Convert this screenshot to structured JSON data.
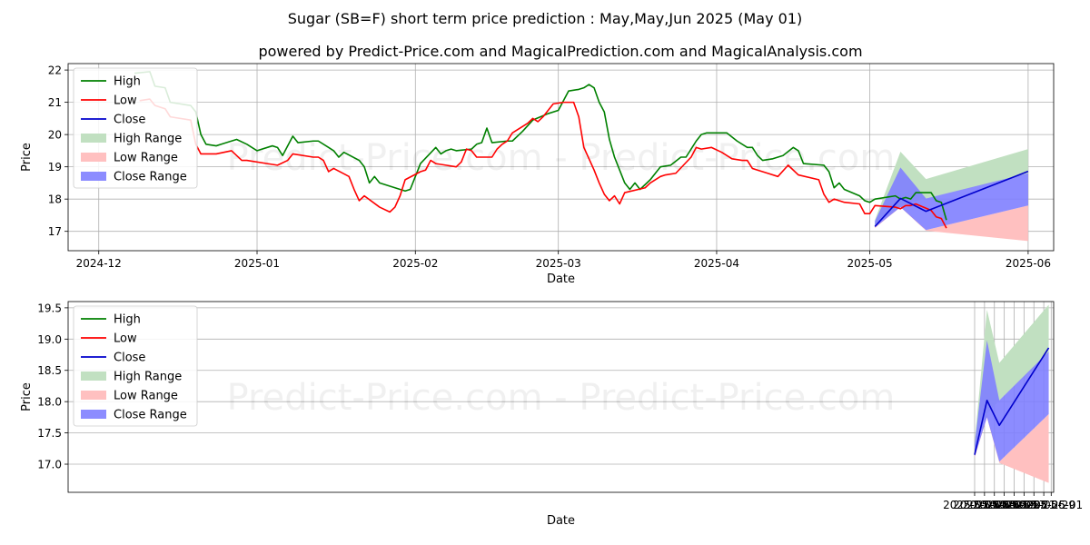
{
  "title": "Sugar (SB=F) short term price prediction : May,May,Jun 2025 (May 01)",
  "subtitle": "powered by Predict-Price.com and MagicalPrediction.com and MagicalAnalysis.com",
  "watermark": "Predict-Price.com - Predict-Price.com",
  "colors": {
    "high": "#008000",
    "low": "#ff0000",
    "close": "#0000cc",
    "high_range": "#c1e0c1",
    "low_range": "#ffc0c0",
    "close_range": "#7f7fff"
  },
  "chart_data": [
    {
      "type": "line",
      "xlabel": "Date",
      "ylabel": "Price",
      "x_type": "date",
      "xlim": [
        "2024-11-24",
        "2025-06-05"
      ],
      "ylim": [
        16.4,
        22.2
      ],
      "x_ticks": [
        "2024-12",
        "2025-01",
        "2025-02",
        "2025-03",
        "2025-04",
        "2025-05",
        "2025-06"
      ],
      "y_ticks": [
        17,
        18,
        19,
        20,
        21,
        22
      ],
      "grid": true,
      "legend_position": "top-left",
      "legend": [
        "High",
        "Low",
        "Close",
        "High Range",
        "Low Range",
        "Close Range"
      ],
      "high_series": [
        [
          "2024-12-07",
          21.9
        ],
        [
          "2024-12-10",
          21.95
        ],
        [
          "2024-12-11",
          21.5
        ],
        [
          "2024-12-13",
          21.45
        ],
        [
          "2024-12-14",
          21.0
        ],
        [
          "2024-12-18",
          20.9
        ],
        [
          "2024-12-19",
          20.7
        ],
        [
          "2024-12-20",
          20.0
        ],
        [
          "2024-12-21",
          19.7
        ],
        [
          "2024-12-23",
          19.65
        ],
        [
          "2024-12-24",
          19.7
        ],
        [
          "2024-12-26",
          19.8
        ],
        [
          "2024-12-27",
          19.85
        ],
        [
          "2024-12-29",
          19.7
        ],
        [
          "2024-12-31",
          19.5
        ],
        [
          "2025-01-03",
          19.65
        ],
        [
          "2025-01-04",
          19.6
        ],
        [
          "2025-01-05",
          19.35
        ],
        [
          "2025-01-07",
          19.95
        ],
        [
          "2025-01-08",
          19.75
        ],
        [
          "2025-01-11",
          19.8
        ],
        [
          "2025-01-12",
          19.8
        ],
        [
          "2025-01-14",
          19.6
        ],
        [
          "2025-01-15",
          19.5
        ],
        [
          "2025-01-16",
          19.3
        ],
        [
          "2025-01-17",
          19.45
        ],
        [
          "2025-01-20",
          19.2
        ],
        [
          "2025-01-21",
          19.0
        ],
        [
          "2025-01-22",
          18.5
        ],
        [
          "2025-01-23",
          18.7
        ],
        [
          "2025-01-24",
          18.5
        ],
        [
          "2025-01-28",
          18.3
        ],
        [
          "2025-01-29",
          18.25
        ],
        [
          "2025-01-30",
          18.3
        ],
        [
          "2025-01-31",
          18.7
        ],
        [
          "2025-02-01",
          19.1
        ],
        [
          "2025-02-04",
          19.6
        ],
        [
          "2025-02-05",
          19.4
        ],
        [
          "2025-02-06",
          19.5
        ],
        [
          "2025-02-07",
          19.55
        ],
        [
          "2025-02-08",
          19.5
        ],
        [
          "2025-02-11",
          19.55
        ],
        [
          "2025-02-12",
          19.7
        ],
        [
          "2025-02-13",
          19.75
        ],
        [
          "2025-02-14",
          20.2
        ],
        [
          "2025-02-15",
          19.75
        ],
        [
          "2025-02-18",
          19.8
        ],
        [
          "2025-02-19",
          19.8
        ],
        [
          "2025-02-21",
          20.1
        ],
        [
          "2025-02-23",
          20.45
        ],
        [
          "2025-02-26",
          20.65
        ],
        [
          "2025-02-28",
          20.75
        ],
        [
          "2025-03-02",
          21.35
        ],
        [
          "2025-03-04",
          21.4
        ],
        [
          "2025-03-05",
          21.45
        ],
        [
          "2025-03-06",
          21.55
        ],
        [
          "2025-03-07",
          21.45
        ],
        [
          "2025-03-08",
          21.0
        ],
        [
          "2025-03-09",
          20.7
        ],
        [
          "2025-03-10",
          19.85
        ],
        [
          "2025-03-11",
          19.3
        ],
        [
          "2025-03-12",
          18.9
        ],
        [
          "2025-03-13",
          18.5
        ],
        [
          "2025-03-14",
          18.3
        ],
        [
          "2025-03-15",
          18.5
        ],
        [
          "2025-03-16",
          18.3
        ],
        [
          "2025-03-18",
          18.6
        ],
        [
          "2025-03-20",
          19.0
        ],
        [
          "2025-03-22",
          19.05
        ],
        [
          "2025-03-24",
          19.3
        ],
        [
          "2025-03-25",
          19.3
        ],
        [
          "2025-03-27",
          19.8
        ],
        [
          "2025-03-28",
          20.0
        ],
        [
          "2025-03-29",
          20.05
        ],
        [
          "2025-04-01",
          20.05
        ],
        [
          "2025-04-02",
          20.05
        ],
        [
          "2025-04-04",
          19.8
        ],
        [
          "2025-04-06",
          19.6
        ],
        [
          "2025-04-07",
          19.6
        ],
        [
          "2025-04-08",
          19.35
        ],
        [
          "2025-04-09",
          19.2
        ],
        [
          "2025-04-11",
          19.25
        ],
        [
          "2025-04-13",
          19.35
        ],
        [
          "2025-04-15",
          19.6
        ],
        [
          "2025-04-16",
          19.5
        ],
        [
          "2025-04-17",
          19.1
        ],
        [
          "2025-04-21",
          19.05
        ],
        [
          "2025-04-22",
          18.85
        ],
        [
          "2025-04-23",
          18.35
        ],
        [
          "2025-04-24",
          18.5
        ],
        [
          "2025-04-25",
          18.3
        ],
        [
          "2025-04-28",
          18.1
        ],
        [
          "2025-04-29",
          17.95
        ],
        [
          "2025-04-30",
          17.9
        ],
        [
          "2025-05-01",
          18.0
        ],
        [
          "2025-05-05",
          18.1
        ],
        [
          "2025-05-06",
          18.0
        ],
        [
          "2025-05-07",
          18.05
        ],
        [
          "2025-05-08",
          18.0
        ],
        [
          "2025-05-09",
          18.2
        ],
        [
          "2025-05-12",
          18.2
        ],
        [
          "2025-05-13",
          17.95
        ],
        [
          "2025-05-14",
          17.9
        ],
        [
          "2025-05-15",
          17.35
        ]
      ],
      "low_series": [
        [
          "2024-12-08",
          21.05
        ],
        [
          "2024-12-10",
          21.1
        ],
        [
          "2024-12-11",
          20.9
        ],
        [
          "2024-12-13",
          20.8
        ],
        [
          "2024-12-14",
          20.55
        ],
        [
          "2024-12-18",
          20.45
        ],
        [
          "2024-12-19",
          19.7
        ],
        [
          "2024-12-20",
          19.4
        ],
        [
          "2024-12-23",
          19.4
        ],
        [
          "2024-12-26",
          19.5
        ],
        [
          "2024-12-28",
          19.2
        ],
        [
          "2024-12-29",
          19.2
        ],
        [
          "2025-01-02",
          19.1
        ],
        [
          "2025-01-04",
          19.05
        ],
        [
          "2025-01-06",
          19.2
        ],
        [
          "2025-01-07",
          19.4
        ],
        [
          "2025-01-11",
          19.3
        ],
        [
          "2025-01-12",
          19.3
        ],
        [
          "2025-01-13",
          19.2
        ],
        [
          "2025-01-14",
          18.85
        ],
        [
          "2025-01-15",
          18.95
        ],
        [
          "2025-01-18",
          18.7
        ],
        [
          "2025-01-19",
          18.3
        ],
        [
          "2025-01-20",
          17.95
        ],
        [
          "2025-01-21",
          18.1
        ],
        [
          "2025-01-24",
          17.75
        ],
        [
          "2025-01-26",
          17.6
        ],
        [
          "2025-01-27",
          17.75
        ],
        [
          "2025-01-28",
          18.1
        ],
        [
          "2025-01-29",
          18.6
        ],
        [
          "2025-02-01",
          18.85
        ],
        [
          "2025-02-02",
          18.9
        ],
        [
          "2025-02-03",
          19.2
        ],
        [
          "2025-02-04",
          19.1
        ],
        [
          "2025-02-06",
          19.05
        ],
        [
          "2025-02-08",
          19.0
        ],
        [
          "2025-02-09",
          19.15
        ],
        [
          "2025-02-10",
          19.55
        ],
        [
          "2025-02-11",
          19.5
        ],
        [
          "2025-02-12",
          19.3
        ],
        [
          "2025-02-15",
          19.3
        ],
        [
          "2025-02-16",
          19.55
        ],
        [
          "2025-02-17",
          19.7
        ],
        [
          "2025-02-18",
          19.8
        ],
        [
          "2025-02-19",
          20.05
        ],
        [
          "2025-02-22",
          20.35
        ],
        [
          "2025-02-23",
          20.5
        ],
        [
          "2025-02-24",
          20.4
        ],
        [
          "2025-02-25",
          20.55
        ],
        [
          "2025-02-27",
          20.95
        ],
        [
          "2025-03-01",
          21.0
        ],
        [
          "2025-03-03",
          21.0
        ],
        [
          "2025-03-04",
          20.55
        ],
        [
          "2025-03-05",
          19.6
        ],
        [
          "2025-03-07",
          18.9
        ],
        [
          "2025-03-08",
          18.5
        ],
        [
          "2025-03-09",
          18.15
        ],
        [
          "2025-03-10",
          17.95
        ],
        [
          "2025-03-11",
          18.1
        ],
        [
          "2025-03-12",
          17.85
        ],
        [
          "2025-03-13",
          18.2
        ],
        [
          "2025-03-17",
          18.35
        ],
        [
          "2025-03-18",
          18.5
        ],
        [
          "2025-03-20",
          18.7
        ],
        [
          "2025-03-21",
          18.75
        ],
        [
          "2025-03-23",
          18.8
        ],
        [
          "2025-03-26",
          19.3
        ],
        [
          "2025-03-27",
          19.6
        ],
        [
          "2025-03-28",
          19.55
        ],
        [
          "2025-03-30",
          19.6
        ],
        [
          "2025-04-01",
          19.45
        ],
        [
          "2025-04-03",
          19.25
        ],
        [
          "2025-04-05",
          19.2
        ],
        [
          "2025-04-06",
          19.2
        ],
        [
          "2025-04-07",
          18.95
        ],
        [
          "2025-04-08",
          18.9
        ],
        [
          "2025-04-10",
          18.8
        ],
        [
          "2025-04-12",
          18.7
        ],
        [
          "2025-04-14",
          19.05
        ],
        [
          "2025-04-16",
          18.75
        ],
        [
          "2025-04-20",
          18.6
        ],
        [
          "2025-04-21",
          18.15
        ],
        [
          "2025-04-22",
          17.9
        ],
        [
          "2025-04-23",
          18.0
        ],
        [
          "2025-04-25",
          17.9
        ],
        [
          "2025-04-28",
          17.85
        ],
        [
          "2025-04-29",
          17.55
        ],
        [
          "2025-04-30",
          17.55
        ],
        [
          "2025-05-01",
          17.8
        ],
        [
          "2025-05-05",
          17.75
        ],
        [
          "2025-05-06",
          17.7
        ],
        [
          "2025-05-07",
          17.8
        ],
        [
          "2025-05-08",
          17.8
        ],
        [
          "2025-05-09",
          17.85
        ],
        [
          "2025-05-12",
          17.65
        ],
        [
          "2025-05-13",
          17.45
        ],
        [
          "2025-05-14",
          17.4
        ],
        [
          "2025-05-15",
          17.1
        ]
      ],
      "prediction": {
        "dates": [
          "2025-05-01",
          "2025-05-06",
          "2025-05-11",
          "2025-05-31"
        ],
        "close": [
          17.15,
          18.02,
          17.62,
          18.86
        ],
        "high_range_upper": [
          17.35,
          19.47,
          18.62,
          19.55
        ],
        "high_range_lower": [
          17.2,
          17.8,
          18.02,
          18.78
        ],
        "close_range_upper": [
          17.32,
          18.98,
          18.02,
          18.8
        ],
        "close_range_lower": [
          17.12,
          17.75,
          17.04,
          17.8
        ],
        "low_range_upper": [
          17.15,
          17.8,
          17.04,
          17.8
        ],
        "low_range_lower": [
          17.1,
          17.75,
          17.02,
          16.7
        ]
      }
    },
    {
      "type": "line",
      "xlabel": "Date",
      "ylabel": "Price",
      "x_type": "date",
      "xlim": [
        "2024-04-29",
        "2025-06-02"
      ],
      "ylim": [
        16.55,
        19.6
      ],
      "x_ticks": [
        "2025-05-01",
        "2025-05-05",
        "2025-05-09",
        "2025-05-13",
        "2025-05-17",
        "2025-05-21",
        "2025-05-25",
        "2025-05-29",
        "2025-06-01"
      ],
      "y_ticks": [
        17.0,
        17.5,
        18.0,
        18.5,
        19.0,
        19.5
      ],
      "y_tick_labels": [
        "17.0",
        "17.5",
        "18.0",
        "18.5",
        "19.0",
        "19.5"
      ],
      "grid": true,
      "legend_position": "top-left",
      "legend": [
        "High",
        "Low",
        "Close",
        "High Range",
        "Low Range",
        "Close Range"
      ],
      "dates": [
        "2025-05-01",
        "2025-05-06",
        "2025-05-11",
        "2025-05-31"
      ],
      "close": [
        17.15,
        18.02,
        17.62,
        18.86
      ],
      "high_range_upper": [
        17.35,
        19.47,
        18.62,
        19.55
      ],
      "high_range_lower": [
        17.2,
        17.8,
        18.02,
        18.78
      ],
      "close_range_upper": [
        17.32,
        18.98,
        18.02,
        18.8
      ],
      "close_range_lower": [
        17.12,
        17.75,
        17.04,
        17.8
      ],
      "low_range_upper": [
        17.15,
        17.8,
        17.04,
        17.8
      ],
      "low_range_lower": [
        17.1,
        17.75,
        17.02,
        16.7
      ]
    }
  ]
}
